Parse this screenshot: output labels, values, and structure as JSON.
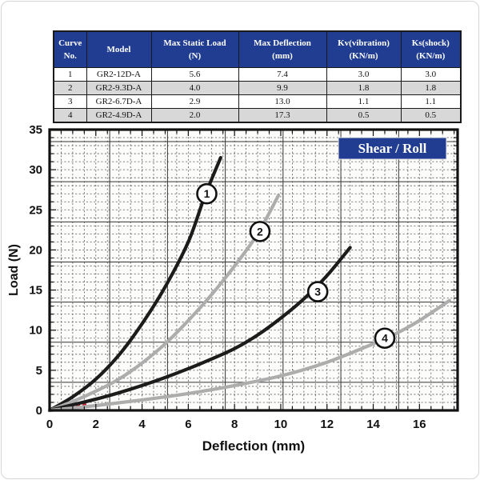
{
  "table": {
    "header_bg": "#203d92",
    "header_text_color": "#ffffff",
    "alt_row_bg": "#d8d8d8",
    "columns": [
      {
        "line1": "Curve",
        "line2": "No."
      },
      {
        "line1": "Model",
        "line2": ""
      },
      {
        "line1": "Max Static Load",
        "line2": "(N)"
      },
      {
        "line1": "Max Deflection",
        "line2": "(mm)"
      },
      {
        "line1": "Kv(vibration)",
        "line2": "(KN/m)"
      },
      {
        "line1": "Ks(shock)",
        "line2": "(KN/m)"
      }
    ],
    "rows": [
      [
        "1",
        "GR2-12D-A",
        "5.6",
        "7.4",
        "3.0",
        "3.0"
      ],
      [
        "2",
        "GR2-9.3D-A",
        "4.0",
        "9.9",
        "1.8",
        "1.8"
      ],
      [
        "3",
        "GR2-6.7D-A",
        "2.9",
        "13.0",
        "1.1",
        "1.1"
      ],
      [
        "4",
        "GR2-4.9D-A",
        "2.0",
        "17.3",
        "0.5",
        "0.5"
      ]
    ]
  },
  "chart_data": {
    "type": "line",
    "badge_label": "Shear / Roll",
    "badge_bg": "#203d92",
    "badge_text_color": "#ffffff",
    "xlabel": "Deflection (mm)",
    "ylabel": "Load (N)",
    "xlim": [
      0,
      17.65
    ],
    "ylim": [
      0,
      35
    ],
    "xticks": [
      0,
      2,
      4,
      6,
      8,
      10,
      12,
      14,
      16
    ],
    "yticks": [
      0,
      5,
      10,
      15,
      20,
      25,
      30,
      35
    ],
    "minor_x_step": 0.5,
    "minor_y_step": 1,
    "solid_x_lines": [
      2.6,
      5.1,
      7.6,
      10.1,
      12.6,
      15.1
    ],
    "solid_y_lines": [
      3.5,
      8.5,
      13.5,
      18.5,
      23.5,
      28.5,
      33.5
    ],
    "grid_color": "#555555",
    "major_grid_color": "#333333",
    "border_color": "#111111",
    "series": [
      {
        "name": "1",
        "model": "GR2-12D-A",
        "color": "#1c1c1c",
        "label_at": [
          6.8,
          27.0
        ],
        "points": [
          [
            0,
            0
          ],
          [
            1,
            1.7
          ],
          [
            2,
            3.9
          ],
          [
            3,
            6.9
          ],
          [
            4,
            10.8
          ],
          [
            5,
            15.4
          ],
          [
            6,
            21.0
          ],
          [
            6.7,
            26.6
          ],
          [
            7.4,
            31.5
          ]
        ]
      },
      {
        "name": "2",
        "model": "GR2-9.3D-A",
        "color": "#adadad",
        "label_at": [
          9.1,
          22.3
        ],
        "points": [
          [
            0,
            0
          ],
          [
            1,
            1.1
          ],
          [
            2,
            2.4
          ],
          [
            3,
            3.9
          ],
          [
            4,
            5.9
          ],
          [
            5,
            8.3
          ],
          [
            6,
            11.2
          ],
          [
            7,
            14.4
          ],
          [
            8,
            18.0
          ],
          [
            9,
            22.0
          ],
          [
            9.9,
            26.8
          ]
        ]
      },
      {
        "name": "3",
        "model": "GR2-6.7D-A",
        "color": "#1c1c1c",
        "label_at": [
          11.6,
          14.8
        ],
        "points": [
          [
            0,
            0
          ],
          [
            1,
            0.7
          ],
          [
            2,
            1.4
          ],
          [
            3,
            2.2
          ],
          [
            4,
            3.1
          ],
          [
            5,
            4.1
          ],
          [
            6,
            5.2
          ],
          [
            7,
            6.4
          ],
          [
            8,
            7.7
          ],
          [
            9,
            9.4
          ],
          [
            10,
            11.5
          ],
          [
            11,
            13.9
          ],
          [
            12,
            16.8
          ],
          [
            13,
            20.3
          ]
        ]
      },
      {
        "name": "4",
        "model": "GR2-4.9D-A",
        "color": "#adadad",
        "label_at": [
          14.5,
          9.0
        ],
        "points": [
          [
            0,
            0
          ],
          [
            2,
            0.6
          ],
          [
            4,
            1.3
          ],
          [
            6,
            2.1
          ],
          [
            8,
            3.1
          ],
          [
            10,
            4.3
          ],
          [
            12,
            6.0
          ],
          [
            14,
            8.3
          ],
          [
            15,
            9.6
          ],
          [
            16,
            11.2
          ],
          [
            17.3,
            13.7
          ]
        ]
      }
    ],
    "red_mark": {
      "color": "#c4242b",
      "points": [
        [
          0.05,
          0.15
        ],
        [
          1.7,
          0.8
        ]
      ]
    }
  }
}
